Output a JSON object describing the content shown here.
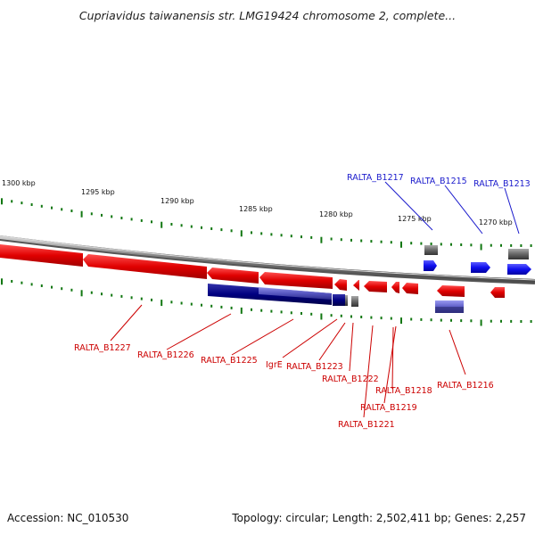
{
  "header": {
    "title": "Cupriavidus taiwanensis str. LMG19424 chromosome 2, complete..."
  },
  "scale_labels": [
    "1300 kbp",
    "1295 kbp",
    "1290 kbp",
    "1285 kbp",
    "1280 kbp",
    "1275 kbp",
    "1270 kbp"
  ],
  "genes_top": [
    {
      "label": "RALTA_B1217"
    },
    {
      "label": "RALTA_B1215"
    },
    {
      "label": "RALTA_B1213"
    }
  ],
  "genes_bottom": [
    {
      "label": "RALTA_B1227"
    },
    {
      "label": "RALTA_B1226"
    },
    {
      "label": "RALTA_B1225"
    },
    {
      "label": "IgrE"
    },
    {
      "label": "RALTA_B1223"
    },
    {
      "label": "RALTA_B1222"
    },
    {
      "label": "RALTA_B1218"
    },
    {
      "label": "RALTA_B1219"
    },
    {
      "label": "RALTA_B1221"
    },
    {
      "label": "RALTA_B1216"
    }
  ],
  "footer": {
    "accession": "Accession: NC_010530",
    "topology": "Topology: circular; Length: 2,502,411 bp; Genes: 2,257"
  },
  "colors": {
    "forward_gene": "#0000ee",
    "reverse_gene": "#ee0000",
    "ncrna": "#000088",
    "pseudo": "#666666",
    "tick": "#117711",
    "backbone": "#8a8a8a"
  }
}
